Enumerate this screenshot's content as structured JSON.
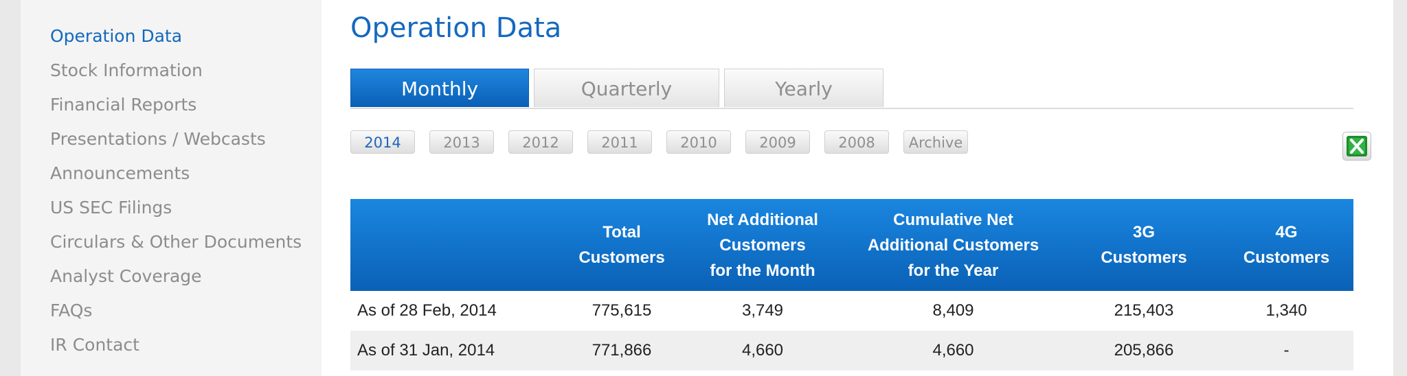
{
  "sidebar": {
    "items": [
      {
        "label": "Operation Data"
      },
      {
        "label": "Stock Information"
      },
      {
        "label": "Financial Reports"
      },
      {
        "label": "Presentations / Webcasts"
      },
      {
        "label": "Announcements"
      },
      {
        "label": "US SEC Filings"
      },
      {
        "label": "Circulars & Other Documents"
      },
      {
        "label": "Analyst Coverage"
      },
      {
        "label": "FAQs"
      },
      {
        "label": "IR Contact"
      }
    ]
  },
  "main": {
    "title": "Operation Data",
    "tabs": [
      {
        "label": "Monthly"
      },
      {
        "label": "Quarterly"
      },
      {
        "label": "Yearly"
      }
    ],
    "years": [
      "2014",
      "2013",
      "2012",
      "2011",
      "2010",
      "2009",
      "2008",
      "Archive"
    ],
    "excel_icon": "excel-icon"
  },
  "table": {
    "headers": [
      "",
      "Total\nCustomers",
      "Net Additional\nCustomers\nfor the Month",
      "Cumulative Net\nAdditional Customers\nfor the Year",
      "3G\nCustomers",
      "4G\nCustomers"
    ],
    "rows": [
      [
        "As of 28 Feb, 2014",
        "775,615",
        "3,749",
        "8,409",
        "215,403",
        "1,340"
      ],
      [
        "As of 31 Jan, 2014",
        "771,866",
        "4,660",
        "4,660",
        "205,866",
        "-"
      ]
    ]
  },
  "colors": {
    "accent": "#1368bd",
    "header_blue": "#0a61b6",
    "sidebar_text": "#8c8c8c"
  }
}
